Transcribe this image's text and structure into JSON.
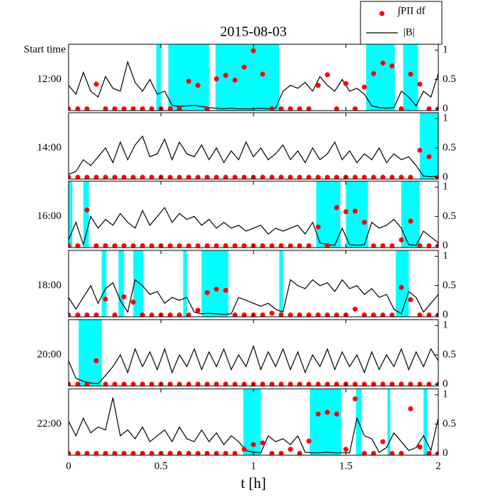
{
  "chart_data": {
    "type": "stacked-panels",
    "title": "2015-08-03",
    "row_label_title": "Start time",
    "x_label": "t   [h]",
    "xlim": [
      0,
      2
    ],
    "xticks": [
      0,
      0.5,
      1,
      1.5,
      2
    ],
    "ylim": [
      -0.03,
      1.1
    ],
    "yticks": [
      0,
      0.5,
      1
    ],
    "shade_color": "#00ffff",
    "legend": "upper right",
    "series": [
      {
        "name": "∫PII df",
        "color": "#ff0000",
        "x": [
          0,
          0.05,
          0.1,
          0.15,
          0.2,
          0.25,
          0.3,
          0.35,
          0.4,
          0.45,
          0.5,
          0.55,
          0.6,
          0.65,
          0.7,
          0.75,
          0.8,
          0.85,
          0.9,
          0.95,
          1,
          1.05,
          1.1,
          1.15,
          1.2,
          1.25,
          1.3,
          1.35,
          1.4,
          1.45,
          1.5,
          1.55,
          1.6,
          1.65,
          1.7,
          1.75,
          1.8,
          1.85,
          1.9,
          1.95,
          2
        ]
      },
      {
        "name": "|B|",
        "color": "#000000",
        "x": [
          0,
          0.04,
          0.08,
          0.12,
          0.16,
          0.2,
          0.24,
          0.28,
          0.32,
          0.36,
          0.4,
          0.44,
          0.48,
          0.52,
          0.56,
          0.6,
          0.64,
          0.68,
          0.72,
          0.76,
          0.8,
          0.84,
          0.88,
          0.92,
          0.96,
          1,
          1.04,
          1.08,
          1.12,
          1.16,
          1.2,
          1.24,
          1.28,
          1.32,
          1.36,
          1.4,
          1.44,
          1.48,
          1.52,
          1.56,
          1.6,
          1.64,
          1.68,
          1.72,
          1.76,
          1.8,
          1.84,
          1.88,
          1.92,
          1.96,
          2
        ]
      }
    ],
    "panels": [
      {
        "label": "12:00",
        "intervals": [
          [
            0.475,
            0.5
          ],
          [
            0.54,
            0.76
          ],
          [
            0.795,
            1.14
          ],
          [
            1.61,
            1.765
          ],
          [
            1.81,
            1.89
          ]
        ],
        "series": [
          {
            "values": [
              0,
              0,
              0,
              0.42,
              0,
              0,
              0,
              0,
              0,
              0,
              0,
              0,
              0,
              0.47,
              0.4,
              0,
              0.51,
              0.57,
              0.49,
              0.71,
              0.99,
              0.59,
              0,
              0,
              0,
              0,
              0,
              0.4,
              0.58,
              0,
              0.43,
              0,
              0.37,
              0.6,
              0.78,
              0.73,
              0,
              0.59,
              0.42,
              0,
              0
            ]
          },
          {
            "values": [
              0.4,
              0.25,
              0.62,
              0.3,
              0.2,
              0.55,
              0.35,
              0.3,
              0.8,
              0.45,
              0.3,
              0.5,
              0.25,
              0.3,
              0.06,
              0.04,
              0.05,
              0.06,
              0.04,
              0.02,
              0.01,
              0,
              0.01,
              0,
              0,
              0,
              0.01,
              0,
              0.01,
              0.3,
              0.4,
              0.35,
              0.45,
              0.3,
              0.55,
              0.4,
              0.3,
              0.5,
              0.3,
              0.35,
              0.25,
              0.05,
              0.02,
              0.01,
              0.02,
              0.3,
              0.2,
              0.05,
              0.3,
              0.2,
              0.6
            ]
          }
        ]
      },
      {
        "label": "14:00",
        "intervals": [
          [
            1.9,
            2
          ]
        ],
        "series": [
          {
            "values": [
              0,
              0,
              0,
              0,
              0,
              0,
              0,
              0,
              0,
              0,
              0,
              0,
              0,
              0,
              0,
              0,
              0,
              0,
              0,
              0,
              0,
              0,
              0,
              0,
              0,
              0,
              0,
              0,
              0,
              0,
              0,
              0,
              0,
              0,
              0,
              0,
              0,
              0,
              0.46,
              0.35,
              0
            ]
          },
          {
            "values": [
              0.05,
              0.1,
              0.3,
              0.2,
              0.35,
              0.5,
              0.25,
              0.6,
              0.3,
              0.55,
              0.7,
              0.35,
              0.4,
              0.65,
              0.3,
              0.6,
              0.4,
              0.35,
              0.55,
              0.3,
              0.5,
              0.25,
              0.45,
              0.3,
              0.6,
              0.35,
              0.5,
              0.3,
              0.4,
              0.55,
              0.3,
              0.45,
              0.25,
              0.5,
              0.3,
              0.4,
              0.6,
              0.3,
              0.45,
              0.25,
              0.4,
              0.3,
              0.5,
              0.25,
              0.4,
              0.3,
              0.35,
              0.2,
              0.02,
              0.01,
              0.02
            ]
          }
        ]
      },
      {
        "label": "16:00",
        "intervals": [
          [
            0,
            0.02
          ],
          [
            0.08,
            0.11
          ],
          [
            1.34,
            1.47
          ],
          [
            1.5,
            1.62
          ],
          [
            1.8,
            1.9
          ]
        ],
        "series": [
          {
            "values": [
              0,
              0,
              0.61,
              0,
              0,
              0,
              0,
              0,
              0,
              0,
              0,
              0,
              0,
              0,
              0,
              0,
              0,
              0,
              0,
              0,
              0,
              0,
              0,
              0,
              0,
              0,
              0,
              0.32,
              0,
              0.65,
              0.58,
              0.59,
              0.4,
              0,
              0,
              0,
              0.1,
              0.42,
              0,
              0,
              0
            ]
          },
          {
            "values": [
              0.1,
              0.4,
              0.02,
              0.5,
              0.3,
              0.45,
              0.35,
              0.55,
              0.4,
              0.3,
              0.6,
              0.35,
              0.5,
              0.65,
              0.4,
              0.55,
              0.45,
              0.5,
              0.35,
              0.45,
              0.3,
              0.4,
              0.3,
              0.35,
              0.25,
              0.3,
              0.35,
              0.2,
              0.3,
              0.25,
              0.3,
              0.35,
              0.2,
              0.4,
              0.05,
              0.02,
              0.01,
              0.3,
              0.02,
              0.01,
              0.02,
              0.4,
              0.3,
              0.35,
              0.45,
              0.3,
              0.02,
              0.01,
              0.25,
              0.15,
              0.05
            ]
          }
        ]
      },
      {
        "label": "18:00",
        "intervals": [
          [
            0.18,
            0.205
          ],
          [
            0.27,
            0.3
          ],
          [
            0.35,
            0.405
          ],
          [
            0.62,
            0.64
          ],
          [
            0.72,
            0.865
          ],
          [
            1.14,
            1.16
          ],
          [
            1.77,
            1.84
          ]
        ],
        "series": [
          {
            "values": [
              0,
              0,
              0,
              0,
              0.27,
              0,
              0.31,
              0.22,
              0,
              0,
              0,
              0,
              0,
              0,
              0.08,
              0.38,
              0.44,
              0.42,
              0,
              0,
              0,
              0,
              0.03,
              0,
              0,
              0,
              0,
              0,
              0,
              0,
              0,
              0.1,
              0,
              0,
              0,
              0,
              0.47,
              0.26,
              0,
              0,
              0
            ]
          },
          {
            "values": [
              0.3,
              0.1,
              0.3,
              0.5,
              0.2,
              0.45,
              0.55,
              0.25,
              0.05,
              0.6,
              0.5,
              0.35,
              0.4,
              0.2,
              0.3,
              0.25,
              0.3,
              0.05,
              0.02,
              0.03,
              0.02,
              0.01,
              0.02,
              0.3,
              0.25,
              0.2,
              0.15,
              0.2,
              0.1,
              0.05,
              0.6,
              0.5,
              0.45,
              0.6,
              0.5,
              0.55,
              0.4,
              0.6,
              0.45,
              0.5,
              0.35,
              0.45,
              0.3,
              0.35,
              0.1,
              0.02,
              0.4,
              0.3,
              0.05,
              0.2,
              0.35
            ]
          }
        ]
      },
      {
        "label": "20:00",
        "intervals": [
          [
            0.055,
            0.18
          ]
        ],
        "series": [
          {
            "values": [
              0,
              0,
              0,
              0.4,
              0,
              0,
              0,
              0,
              0,
              0,
              0,
              0,
              0,
              0,
              0,
              0,
              0,
              0,
              0,
              0,
              0,
              0,
              0,
              0,
              0,
              0,
              0,
              0,
              0,
              0,
              0,
              0,
              0,
              0,
              0,
              0,
              0,
              0,
              0,
              0,
              0
            ]
          },
          {
            "values": [
              0.4,
              0.1,
              0.05,
              0.02,
              0.01,
              0.15,
              0.3,
              0.5,
              0.2,
              0.6,
              0.3,
              0.55,
              0.25,
              0.6,
              0.2,
              0.5,
              0.3,
              0.6,
              0.25,
              0.55,
              0.3,
              0.6,
              0.25,
              0.5,
              0.3,
              0.65,
              0.25,
              0.55,
              0.3,
              0.6,
              0.25,
              0.55,
              0.2,
              0.5,
              0.3,
              0.6,
              0.25,
              0.55,
              0.3,
              0.5,
              0.2,
              0.55,
              0.25,
              0.5,
              0.3,
              0.6,
              0.25,
              0.55,
              0.3,
              0.6,
              0.4
            ]
          }
        ]
      },
      {
        "label": "22:00",
        "intervals": [
          [
            0.945,
            1.04
          ],
          [
            1.305,
            1.475
          ],
          [
            1.555,
            1.585
          ],
          [
            1.725,
            1.74
          ],
          [
            1.92,
            1.94
          ]
        ],
        "series": [
          {
            "values": [
              0,
              0,
              0,
              0,
              0,
              0,
              0,
              0,
              0,
              0,
              0,
              0,
              0,
              0,
              0,
              0,
              0,
              0,
              0,
              0.07,
              0.15,
              0.18,
              0,
              0,
              0.07,
              0,
              0.21,
              0.67,
              0.7,
              0.67,
              0.07,
              0.93,
              0,
              0,
              0.2,
              0,
              0,
              0.76,
              0.11,
              0,
              0
            ]
          },
          {
            "values": [
              0.55,
              0.3,
              0.6,
              0.35,
              0.45,
              0.4,
              0.95,
              0.3,
              0.4,
              0.25,
              0.45,
              0.2,
              0.3,
              0.4,
              0.2,
              0.45,
              0.25,
              0.2,
              0.4,
              0.2,
              0.35,
              0.15,
              0.3,
              0.2,
              0.05,
              0.02,
              0.01,
              0.3,
              0.2,
              0.25,
              0.15,
              0.3,
              0.02,
              0.01,
              0.01,
              0.02,
              0.01,
              0.01,
              0.01,
              0.6,
              0.3,
              0.25,
              0.02,
              0.1,
              0.35,
              0.2,
              0.05,
              0.1,
              0.3,
              0.05,
              0.6
            ]
          }
        ]
      }
    ]
  }
}
